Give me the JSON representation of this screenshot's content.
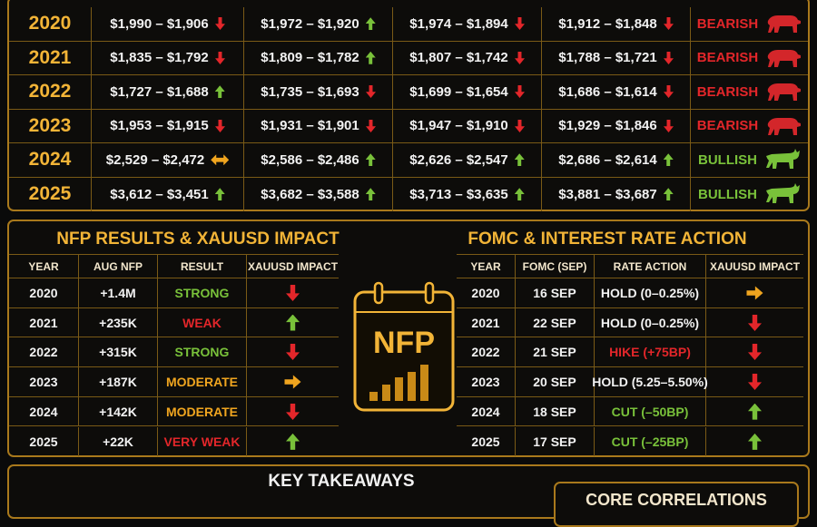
{
  "price_table": {
    "rows": [
      {
        "year": "2020",
        "cells": [
          "$1,990 – $1,906",
          "$1,972 – $1,920",
          "$1,974 – $1,894",
          "$1,912 – $1,848"
        ],
        "outlook": "BEARISH"
      },
      {
        "year": "2021",
        "cells": [
          "$1,835 – $1,792",
          "$1,809 – $1,782",
          "$1,807 – $1,742",
          "$1,788 – $1,721"
        ],
        "outlook": "BEARISH"
      },
      {
        "year": "2022",
        "cells": [
          "$1,727 – $1,688",
          "$1,735 – $1,693",
          "$1,699 – $1,654",
          "$1,686 – $1,614"
        ],
        "outlook": "BEARISH"
      },
      {
        "year": "2023",
        "cells": [
          "$1,953 – $1,915",
          "$1,931 – $1,901",
          "$1,947 – $1,910",
          "$1,929 – $1,846"
        ],
        "outlook": "BEARISH"
      },
      {
        "year": "2024",
        "cells": [
          "$2,529 – $2,472",
          "$2,586 – $2,486",
          "$2,626 – $2,547",
          "$2,686 – $2,614"
        ],
        "outlook": "BULLISH"
      },
      {
        "year": "2025",
        "cells": [
          "$3,612 – $3,451",
          "$3,682 – $3,588",
          "$3,713 – $3,635",
          "$3,881 – $3,687"
        ],
        "outlook": "BULLISH"
      }
    ]
  },
  "nfp": {
    "title": "NFP RESULTS & XAUUSD IMPACT",
    "headers": [
      "YEAR",
      "AUG NFP",
      "RESULT",
      "XAUUSD IMPACT"
    ],
    "rows": [
      [
        "2020",
        "+1.4M",
        "STRONG"
      ],
      [
        "2021",
        "+235K",
        "WEAK"
      ],
      [
        "2022",
        "+315K",
        "STRONG"
      ],
      [
        "2023",
        "+187K",
        "MODERATE"
      ],
      [
        "2024",
        "+142K",
        "MODERATE"
      ],
      [
        "2025",
        "+22K",
        "VERY WEAK"
      ]
    ]
  },
  "icon_label": "NFP",
  "fomc": {
    "title": "FOMC & INTEREST RATE ACTION",
    "headers": [
      "YEAR",
      "FOMC (SEP)",
      "RATE ACTION",
      "XAUUSD IMPACT"
    ],
    "rows": [
      [
        "2020",
        "16 SEP",
        "HOLD (0–0.25%)"
      ],
      [
        "2021",
        "22 SEP",
        "HOLD (0–0.25%)"
      ],
      [
        "2022",
        "21 SEP",
        "HIKE (+75BP)"
      ],
      [
        "2023",
        "20 SEP",
        "HOLD (5.25–5.50%)"
      ],
      [
        "2024",
        "18 SEP",
        "CUT (–50BP)"
      ],
      [
        "2025",
        "17 SEP",
        "CUT (–25BP)"
      ]
    ]
  },
  "takeaways": {
    "title": "KEY TAKEAWAYS",
    "subtitle": "CORE CORRELATIONS"
  }
}
